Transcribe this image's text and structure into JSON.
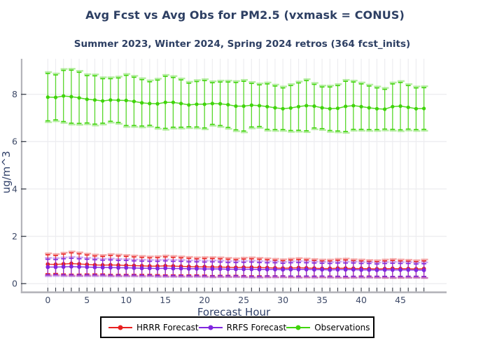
{
  "figure": {
    "title": "Avg Fcst vs Avg Obs for PM2.5 (vxmask = CONUS)",
    "subtitle": "Summer 2023, Winter 2024, Spring 2024 retros (364 fcst_inits)",
    "title_color": "#2d3f63",
    "background": "#ffffff"
  },
  "axes": {
    "tick_color": "#3a3f4a",
    "tick_label_color": "#3e4a68",
    "spine_color": "#b4b4ba",
    "grid_color": "#ededf0"
  },
  "legend": {
    "position": "bottom",
    "items": [
      {
        "label": "HRRR Forecast",
        "color": "#e82020"
      },
      {
        "label": "RRFS Forecast",
        "color": "#8026df"
      },
      {
        "label": "Observations",
        "color": "#3fd40a"
      }
    ]
  },
  "chart_data": {
    "type": "line",
    "title": "Avg Fcst vs Avg Obs for PM2.5 (vxmask = CONUS)",
    "subtitle": "Summer 2023, Winter 2024, Spring 2024 retros (364 fcst_inits)",
    "xlabel": "Forecast Hour",
    "ylabel": "ug/m^3",
    "grid": true,
    "legend_position": "bottom",
    "x": [
      0,
      1,
      2,
      3,
      4,
      5,
      6,
      7,
      8,
      9,
      10,
      11,
      12,
      13,
      14,
      15,
      16,
      17,
      18,
      19,
      20,
      21,
      22,
      23,
      24,
      25,
      26,
      27,
      28,
      29,
      30,
      31,
      32,
      33,
      34,
      35,
      36,
      37,
      38,
      39,
      40,
      41,
      42,
      43,
      44,
      45,
      46,
      47,
      48
    ],
    "xticks": [
      0,
      5,
      10,
      15,
      20,
      25,
      30,
      35,
      40,
      45
    ],
    "yticks": [
      0,
      2,
      4,
      6,
      8
    ],
    "xlim": [
      -3.3,
      50.9
    ],
    "ylim": [
      -0.35,
      9.35
    ],
    "series": [
      {
        "name": "HRRR Forecast",
        "color": "#e82020",
        "marker": "circle",
        "values": [
          0.82,
          0.81,
          0.83,
          0.85,
          0.83,
          0.81,
          0.79,
          0.78,
          0.79,
          0.78,
          0.77,
          0.76,
          0.75,
          0.74,
          0.74,
          0.75,
          0.74,
          0.73,
          0.72,
          0.71,
          0.71,
          0.7,
          0.7,
          0.69,
          0.68,
          0.69,
          0.69,
          0.68,
          0.67,
          0.66,
          0.65,
          0.66,
          0.67,
          0.66,
          0.65,
          0.64,
          0.64,
          0.65,
          0.65,
          0.64,
          0.64,
          0.63,
          0.62,
          0.63,
          0.64,
          0.63,
          0.63,
          0.62,
          0.63
        ],
        "err": [
          0.4,
          0.38,
          0.42,
          0.45,
          0.43,
          0.4,
          0.38,
          0.37,
          0.4,
          0.39,
          0.38,
          0.37,
          0.36,
          0.35,
          0.36,
          0.38,
          0.37,
          0.36,
          0.35,
          0.34,
          0.35,
          0.36,
          0.35,
          0.34,
          0.33,
          0.35,
          0.36,
          0.35,
          0.34,
          0.33,
          0.32,
          0.34,
          0.35,
          0.34,
          0.33,
          0.32,
          0.32,
          0.34,
          0.35,
          0.33,
          0.32,
          0.31,
          0.31,
          0.33,
          0.34,
          0.33,
          0.32,
          0.31,
          0.33
        ]
      },
      {
        "name": "RRFS Forecast",
        "color": "#8026df",
        "marker": "circle",
        "values": [
          0.7,
          0.7,
          0.71,
          0.72,
          0.71,
          0.7,
          0.69,
          0.68,
          0.68,
          0.67,
          0.67,
          0.66,
          0.65,
          0.65,
          0.64,
          0.65,
          0.64,
          0.64,
          0.63,
          0.63,
          0.62,
          0.62,
          0.62,
          0.61,
          0.61,
          0.61,
          0.61,
          0.6,
          0.6,
          0.6,
          0.59,
          0.6,
          0.6,
          0.6,
          0.59,
          0.59,
          0.58,
          0.59,
          0.59,
          0.59,
          0.58,
          0.58,
          0.57,
          0.58,
          0.58,
          0.58,
          0.58,
          0.57,
          0.57
        ],
        "err": [
          0.33,
          0.32,
          0.34,
          0.35,
          0.34,
          0.33,
          0.32,
          0.31,
          0.32,
          0.31,
          0.31,
          0.3,
          0.3,
          0.29,
          0.3,
          0.31,
          0.3,
          0.3,
          0.29,
          0.29,
          0.29,
          0.3,
          0.29,
          0.28,
          0.28,
          0.29,
          0.3,
          0.29,
          0.28,
          0.28,
          0.27,
          0.28,
          0.29,
          0.28,
          0.28,
          0.27,
          0.27,
          0.28,
          0.28,
          0.28,
          0.27,
          0.27,
          0.26,
          0.27,
          0.28,
          0.27,
          0.27,
          0.26,
          0.27
        ]
      },
      {
        "name": "Observations",
        "color": "#3fd40a",
        "marker": "circle",
        "values": [
          7.88,
          7.87,
          7.93,
          7.9,
          7.85,
          7.79,
          7.76,
          7.72,
          7.76,
          7.75,
          7.74,
          7.7,
          7.64,
          7.61,
          7.6,
          7.66,
          7.66,
          7.61,
          7.55,
          7.58,
          7.58,
          7.61,
          7.6,
          7.56,
          7.5,
          7.5,
          7.54,
          7.52,
          7.48,
          7.43,
          7.39,
          7.42,
          7.48,
          7.52,
          7.5,
          7.43,
          7.39,
          7.41,
          7.49,
          7.52,
          7.48,
          7.43,
          7.39,
          7.37,
          7.48,
          7.5,
          7.45,
          7.39,
          7.4
        ],
        "err": [
          1.0,
          0.95,
          1.08,
          1.12,
          1.08,
          1.0,
          1.02,
          0.94,
          0.9,
          0.94,
          1.06,
          1.02,
          0.98,
          0.92,
          1.0,
          1.1,
          1.05,
          1.0,
          0.92,
          0.96,
          1.0,
          0.88,
          0.92,
          0.96,
          1.0,
          1.05,
          0.92,
          0.88,
          0.96,
          0.92,
          0.88,
          0.95,
          1.0,
          1.06,
          0.92,
          0.88,
          0.92,
          0.96,
          1.06,
          1.0,
          0.96,
          0.92,
          0.88,
          0.84,
          0.96,
          1.0,
          0.92,
          0.88,
          0.88
        ]
      }
    ]
  }
}
